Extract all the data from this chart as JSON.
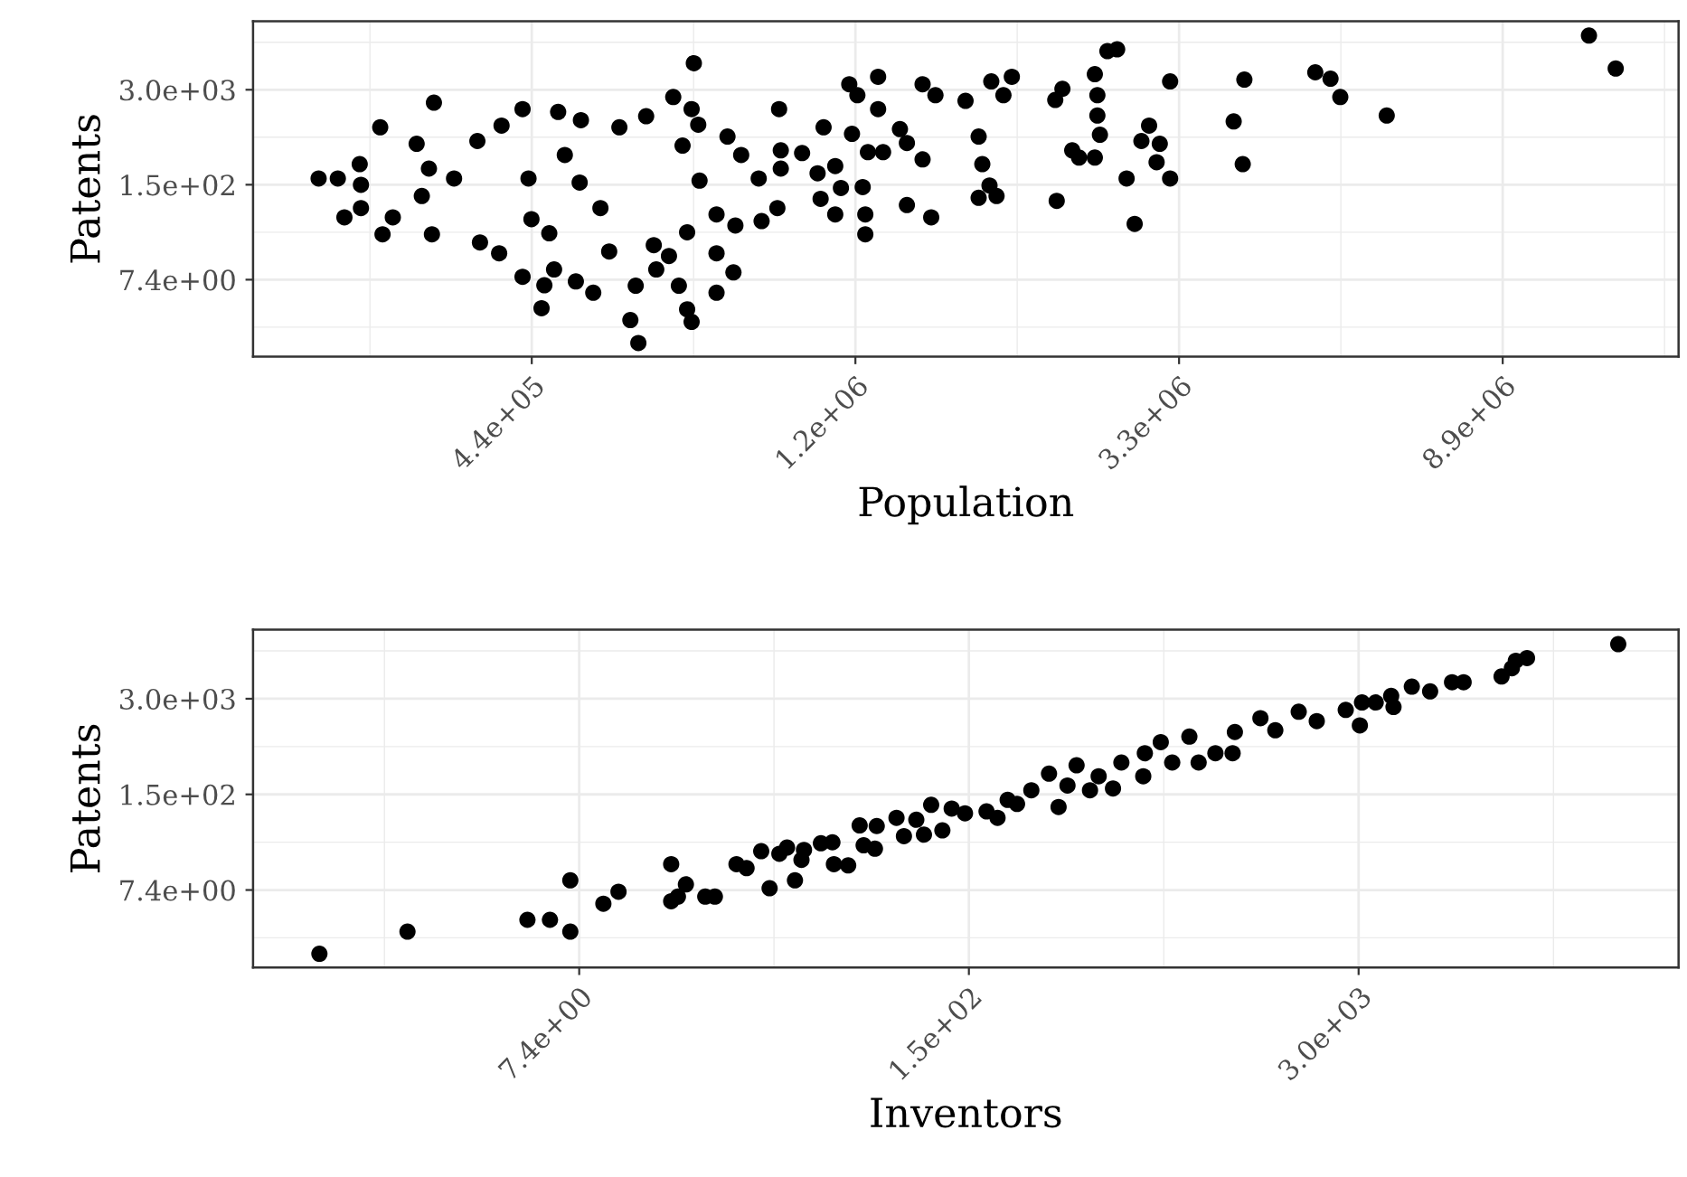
{
  "chart_data": [
    {
      "type": "scatter",
      "xlabel": "Population",
      "ylabel": "Patents",
      "log": "xy",
      "grid": true,
      "marker": "circle",
      "xlim": [
        187000,
        15300000
      ],
      "ylim": [
        0.65,
        26000
      ],
      "xticks": [
        {
          "value": 268337,
          "label": null
        },
        {
          "value": 442413,
          "label": "4.4e+05"
        },
        {
          "value": 729416,
          "label": null
        },
        {
          "value": 1202604,
          "label": "1.2e+06"
        },
        {
          "value": 1982759,
          "label": null
        },
        {
          "value": 3269017,
          "label": "3.3e+06"
        },
        {
          "value": 5389698,
          "label": null
        },
        {
          "value": 8886111,
          "label": "8.9e+06"
        },
        {
          "value": 14650719,
          "label": null
        }
      ],
      "yticks": [
        {
          "value": 1.65,
          "label": null
        },
        {
          "value": 7.389,
          "label": "7.4e+00"
        },
        {
          "value": 33.1,
          "label": null
        },
        {
          "value": 148.4,
          "label": "1.5e+02"
        },
        {
          "value": 665.1,
          "label": null
        },
        {
          "value": 2981,
          "label": "3.0e+03"
        },
        {
          "value": 13360,
          "label": null
        }
      ],
      "series": [
        {
          "color": "#000000",
          "x": [
            229000,
            243000,
            248000,
            260000,
            261000,
            261000,
            279000,
            277000,
            288000,
            315000,
            322000,
            325000,
            327000,
            310000,
            348000,
            374000,
            377000,
            400000,
            403000,
            430000,
            430000,
            438000,
            442000,
            456000,
            460000,
            467000,
            474000,
            480000,
            490000,
            507000,
            513000,
            515000,
            535000,
            547000,
            562000,
            580000,
            600000,
            615000,
            610000,
            630000,
            645000,
            650000,
            676000,
            685000,
            697000,
            705000,
            715000,
            725000,
            730000,
            725000,
            715000,
            743000,
            783000,
            783000,
            783000,
            740000,
            825000,
            830000,
            810000,
            845000,
            892000,
            900000,
            945000,
            950000,
            955000,
            955000,
            1020000,
            1070000,
            1080000,
            1090000,
            1130000,
            1130000,
            1150000,
            1180000,
            1190000,
            1210000,
            1230000,
            1240000,
            1240000,
            1250000,
            1290000,
            1290000,
            1310000,
            1380000,
            1410000,
            1410000,
            1480000,
            1520000,
            1480000,
            1540000,
            1690000,
            1760000,
            1780000,
            1760000,
            1820000,
            1860000,
            1830000,
            1950000,
            1900000,
            2240000,
            2230000,
            2280000,
            2350000,
            2400000,
            2520000,
            2540000,
            2540000,
            2560000,
            2520000,
            2620000,
            2700000,
            2780000,
            2850000,
            2910000,
            2980000,
            3080000,
            3050000,
            3180000,
            3180000,
            3870000,
            3980000,
            4000000,
            4980000,
            5220000,
            5380000,
            6210000,
            11600000,
            12600000
          ],
          "values": [
            181,
            181,
            53,
            284,
            148,
            71,
            31,
            910,
            53,
            104,
            247,
            31,
            1980,
            540,
            181,
            590,
            24,
            17,
            960,
            8.1,
            1620,
            181,
            50,
            3.0,
            6.2,
            32,
            10.2,
            1480,
            380,
            7.0,
            159,
            1140,
            4.9,
            71,
            18,
            910,
            2.06,
            1.0,
            6.1,
            1290,
            22,
            10.2,
            15.6,
            2370,
            6.1,
            510,
            2.9,
            1.95,
            6900,
            1620,
            33,
            169,
            58,
            4.9,
            17,
            990,
            9.3,
            41,
            680,
            380,
            181,
            47,
            71,
            1620,
            440,
            247,
            403,
            213,
            95,
            910,
            58,
            268,
            134,
            3550,
            740,
            2510,
            138,
            58,
            31,
            415,
            1620,
            4490,
            415,
            860,
            555,
            78,
            330,
            53,
            3550,
            2510,
            2100,
            680,
            284,
            98,
            145,
            104,
            3880,
            4490,
            2510,
            89,
            2160,
            3070,
            440,
            350,
            4880,
            2510,
            1320,
            720,
            350,
            10100,
            10700,
            181,
            43,
            590,
            960,
            540,
            302,
            181,
            3880,
            1097,
            284,
            4110,
            5170,
            4230,
            2370,
            1320,
            16500,
            5830
          ]
        }
      ]
    },
    {
      "type": "scatter",
      "xlabel": "Inventors",
      "ylabel": "Patents",
      "log": "xy",
      "grid": true,
      "marker": "circle",
      "xlim": [
        0.6,
        35000
      ],
      "ylim": [
        0.65,
        26000
      ],
      "xticks": [
        {
          "value": 1.65,
          "label": null
        },
        {
          "value": 7.389,
          "label": "7.4e+00"
        },
        {
          "value": 33.1,
          "label": null
        },
        {
          "value": 148.4,
          "label": "1.5e+02"
        },
        {
          "value": 665.1,
          "label": null
        },
        {
          "value": 2981,
          "label": "3.0e+03"
        },
        {
          "value": 13360,
          "label": null
        }
      ],
      "yticks": [
        {
          "value": 1.65,
          "label": null
        },
        {
          "value": 7.389,
          "label": "7.4e+00"
        },
        {
          "value": 33.1,
          "label": null
        },
        {
          "value": 148.4,
          "label": "1.5e+02"
        },
        {
          "value": 665.1,
          "label": null
        },
        {
          "value": 2981,
          "label": "3.0e+03"
        },
        {
          "value": 13360,
          "label": null
        }
      ],
      "series": [
        {
          "color": "#000000",
          "x": [
            1.0,
            1.97,
            4.96,
            5.9,
            6.9,
            6.9,
            8.9,
            10.0,
            15.0,
            15.0,
            15.8,
            16.8,
            19.5,
            21,
            24.8,
            26.8,
            30,
            32,
            34.5,
            36.6,
            38.9,
            40.9,
            41.7,
            47.5,
            51.9,
            52.5,
            58.6,
            64,
            66,
            72,
            73,
            85,
            90,
            99,
            105,
            111,
            121,
            130,
            144,
            170,
            185,
            200,
            215,
            240,
            275,
            296,
            317,
            340,
            377,
            403,
            450,
            480,
            568,
            575,
            650,
            710,
            810,
            870,
            990,
            1130,
            1150,
            1400,
            1570,
            1880,
            2160,
            2700,
            3060,
            3010,
            3400,
            3830,
            3900,
            4490,
            5170,
            6120,
            6690,
            8960,
            9700,
            10000,
            10900,
            22000
          ],
          "values": [
            1.0,
            2.0,
            2.9,
            2.9,
            2.0,
            10.0,
            4.8,
            7.0,
            16.6,
            5.2,
            6.0,
            8.8,
            6.0,
            6.0,
            16.6,
            14.7,
            25,
            7.8,
            23,
            28,
            10.0,
            19,
            26,
            32,
            33,
            16.6,
            16,
            56,
            30,
            27,
            55,
            71,
            40,
            67,
            42,
            107,
            48,
            95,
            82,
            87,
            71,
            125,
            110,
            169,
            284,
            100,
            196,
            370,
            169,
            262,
            179,
            403,
            262,
            540,
            765,
            403,
            910,
            403,
            540,
            540,
            1050,
            1620,
            1110,
            1980,
            1480,
            2100,
            2650,
            1290,
            2650,
            3260,
            2300,
            4360,
            3750,
            5010,
            5010,
            6000,
            7770,
            9800,
            10700,
            16500
          ]
        }
      ]
    }
  ]
}
